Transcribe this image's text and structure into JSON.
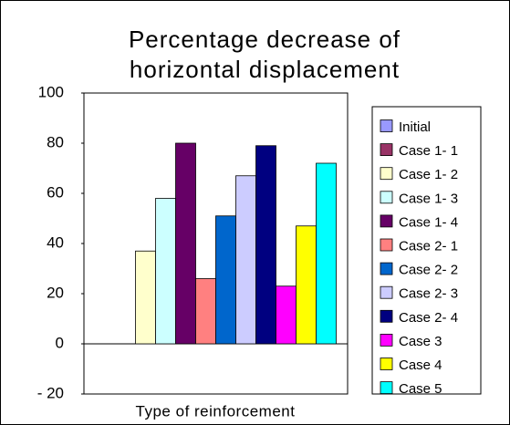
{
  "chart_data": {
    "type": "bar",
    "title": [
      "Percentage decrease of",
      "horizontal displacement"
    ],
    "xlabel": "Type of reinforcement",
    "categories": [
      "Type of reinforcement"
    ],
    "series": [
      {
        "name": "Initial",
        "color": "#9999ff",
        "values": [
          0
        ]
      },
      {
        "name": "Case 1- 1",
        "color": "#993366",
        "values": [
          0
        ]
      },
      {
        "name": "Case 1- 2",
        "color": "#ffffcc",
        "values": [
          37
        ]
      },
      {
        "name": "Case 1- 3",
        "color": "#ccffff",
        "values": [
          58
        ]
      },
      {
        "name": "Case 1- 4",
        "color": "#660066",
        "values": [
          80
        ]
      },
      {
        "name": "Case 2- 1",
        "color": "#ff8080",
        "values": [
          26
        ]
      },
      {
        "name": "Case 2- 2",
        "color": "#0066cc",
        "values": [
          51
        ]
      },
      {
        "name": "Case 2- 3",
        "color": "#ccccff",
        "values": [
          67
        ]
      },
      {
        "name": "Case 2- 4",
        "color": "#000080",
        "values": [
          79
        ]
      },
      {
        "name": "Case 3",
        "color": "#ff00ff",
        "values": [
          23
        ]
      },
      {
        "name": "Case 4",
        "color": "#ffff00",
        "values": [
          47
        ]
      },
      {
        "name": "Case 5",
        "color": "#00ffff",
        "values": [
          72
        ]
      }
    ],
    "ylim": [
      -20,
      100
    ],
    "yticks": [
      {
        "value": -20,
        "label": "- 20"
      },
      0,
      20,
      40,
      60,
      80,
      100
    ],
    "grid": false,
    "legend": "right"
  }
}
